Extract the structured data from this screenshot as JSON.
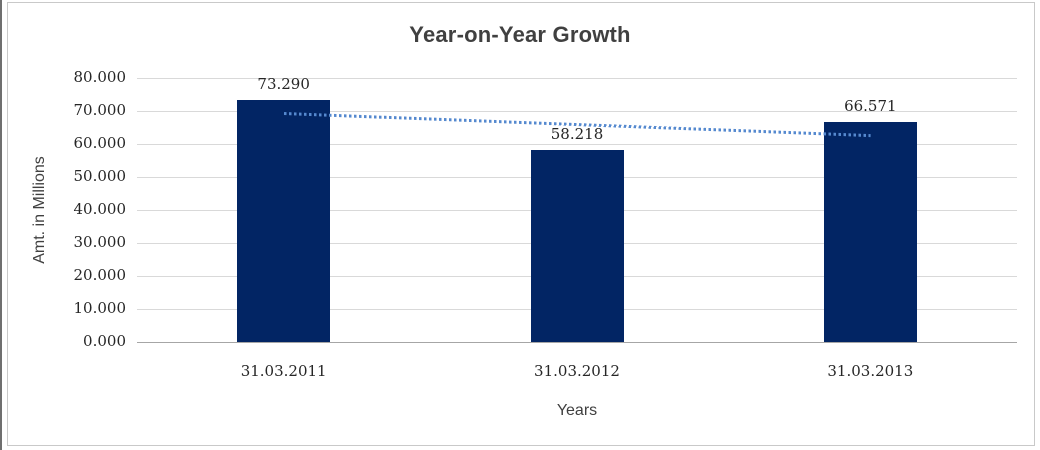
{
  "chart_data": {
    "type": "bar",
    "title": "Year-on-Year Growth",
    "xlabel": "Years",
    "ylabel": "Amt. in Millions",
    "categories": [
      "31.03.2011",
      "31.03.2012",
      "31.03.2013"
    ],
    "values": [
      73.29,
      58.218,
      66.571
    ],
    "data_labels": [
      "73.290",
      "58.218",
      "66.571"
    ],
    "ylim": [
      0,
      80
    ],
    "yticks": [
      {
        "value": 0,
        "label": "0.000"
      },
      {
        "value": 10,
        "label": "10.000"
      },
      {
        "value": 20,
        "label": "20.000"
      },
      {
        "value": 30,
        "label": "30.000"
      },
      {
        "value": 40,
        "label": "40.000"
      },
      {
        "value": 50,
        "label": "50.000"
      },
      {
        "value": 60,
        "label": "60.000"
      },
      {
        "value": 70,
        "label": "70.000"
      },
      {
        "value": 80,
        "label": "80.000"
      }
    ],
    "grid": true,
    "legend": false,
    "trendline": {
      "type": "linear",
      "style": "dotted",
      "start": {
        "category_index": 0,
        "value": 69.4
      },
      "end": {
        "category_index": 2,
        "value": 62.7
      }
    },
    "colors": {
      "bar": "#022564",
      "trendline": "#5589cf",
      "gridline": "#d9d9d9",
      "axis_line": "#a6a6a6",
      "label_text": "#262626",
      "title_text": "#404040"
    }
  }
}
